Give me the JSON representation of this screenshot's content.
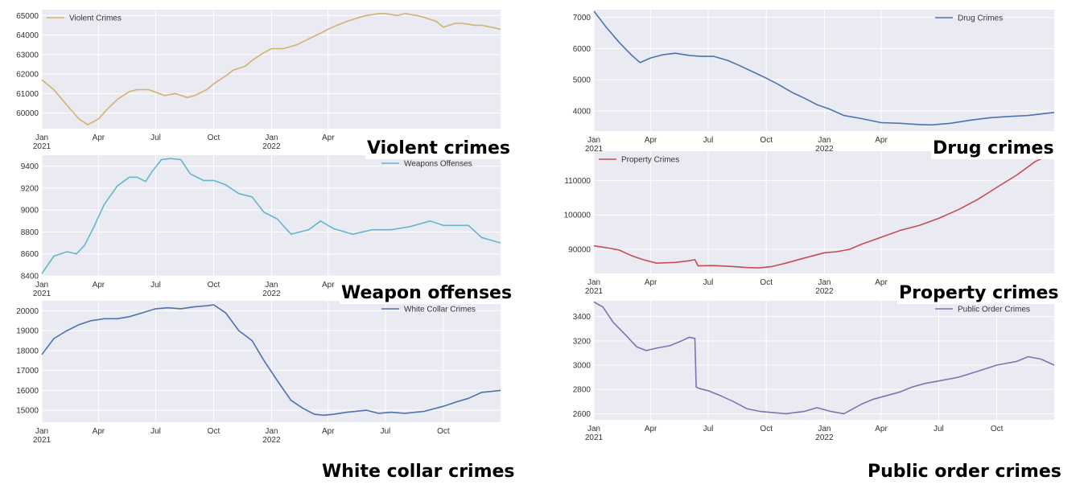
{
  "figure": {
    "captions": [
      {
        "id": "violent",
        "text": "Violent crimes"
      },
      {
        "id": "drug",
        "text": "Drug crimes"
      },
      {
        "id": "weapons",
        "text": "Weapon offenses"
      },
      {
        "id": "property",
        "text": "Property crimes"
      },
      {
        "id": "whitecollar",
        "text": "White collar crimes"
      },
      {
        "id": "publicorder",
        "text": "Public order crimes"
      }
    ]
  },
  "chart_data": [
    {
      "id": "violent",
      "type": "line",
      "title": "",
      "xlabel": "",
      "ylabel": "",
      "color": "#d1b26f",
      "legend": "top-left",
      "grid": true,
      "xlim": [
        "2021-01-01",
        "2022-12-31"
      ],
      "ylim": [
        59200,
        65300
      ],
      "x_ticks": [
        {
          "date": "2021-01-01",
          "label": "Jan",
          "year": "2021"
        },
        {
          "date": "2021-04-01",
          "label": "Apr",
          "year": ""
        },
        {
          "date": "2021-07-01",
          "label": "Jul",
          "year": ""
        },
        {
          "date": "2021-10-01",
          "label": "Oct",
          "year": ""
        },
        {
          "date": "2022-01-01",
          "label": "Jan",
          "year": "2022"
        },
        {
          "date": "2022-04-01",
          "label": "Apr",
          "year": ""
        }
      ],
      "y_ticks": [
        60000,
        61000,
        62000,
        63000,
        64000,
        65000
      ],
      "series": [
        {
          "name": "Violent Crimes",
          "x": [
            "2021-01-01",
            "2021-01-20",
            "2021-02-10",
            "2021-03-01",
            "2021-03-15",
            "2021-04-01",
            "2021-04-15",
            "2021-05-01",
            "2021-05-20",
            "2021-06-01",
            "2021-06-20",
            "2021-07-15",
            "2021-08-01",
            "2021-08-20",
            "2021-09-01",
            "2021-09-20",
            "2021-10-01",
            "2021-10-20",
            "2021-11-01",
            "2021-11-20",
            "2021-12-01",
            "2021-12-20",
            "2022-01-01",
            "2022-01-20",
            "2022-02-10",
            "2022-03-01",
            "2022-03-20",
            "2022-04-01",
            "2022-04-15",
            "2022-05-01",
            "2022-05-20",
            "2022-06-01",
            "2022-06-20",
            "2022-07-01",
            "2022-07-20",
            "2022-08-01",
            "2022-08-20",
            "2022-09-01",
            "2022-09-20",
            "2022-10-01",
            "2022-10-20",
            "2022-11-01",
            "2022-11-20",
            "2022-12-01",
            "2022-12-31"
          ],
          "y": [
            61700,
            61200,
            60400,
            59700,
            59400,
            59700,
            60200,
            60700,
            61100,
            61200,
            61200,
            60900,
            61000,
            60800,
            60900,
            61200,
            61500,
            61900,
            62200,
            62400,
            62700,
            63100,
            63300,
            63300,
            63500,
            63800,
            64100,
            64300,
            64500,
            64700,
            64900,
            65000,
            65100,
            65100,
            65000,
            65100,
            65000,
            64900,
            64700,
            64400,
            64600,
            64600,
            64500,
            64500,
            64300
          ]
        }
      ]
    },
    {
      "id": "drug",
      "type": "line",
      "title": "",
      "xlabel": "",
      "ylabel": "",
      "color": "#4c72b0",
      "legend": "top-right",
      "grid": true,
      "xlim": [
        "2021-01-01",
        "2022-12-31"
      ],
      "ylim": [
        3350,
        7250
      ],
      "x_ticks": [
        {
          "date": "2021-01-01",
          "label": "Jan",
          "year": "2021"
        },
        {
          "date": "2021-04-01",
          "label": "Apr",
          "year": ""
        },
        {
          "date": "2021-07-01",
          "label": "Jul",
          "year": ""
        },
        {
          "date": "2021-10-01",
          "label": "Oct",
          "year": ""
        },
        {
          "date": "2022-01-01",
          "label": "Jan",
          "year": "2022"
        },
        {
          "date": "2022-04-01",
          "label": "Apr",
          "year": ""
        }
      ],
      "y_ticks": [
        4000,
        5000,
        6000,
        7000
      ],
      "series": [
        {
          "name": "Drug Crimes",
          "x": [
            "2021-01-01",
            "2021-01-20",
            "2021-02-10",
            "2021-03-01",
            "2021-03-15",
            "2021-04-01",
            "2021-04-20",
            "2021-05-10",
            "2021-06-01",
            "2021-06-20",
            "2021-07-10",
            "2021-08-01",
            "2021-08-20",
            "2021-09-10",
            "2021-10-01",
            "2021-10-20",
            "2021-11-10",
            "2021-12-01",
            "2021-12-20",
            "2022-01-10",
            "2022-02-01",
            "2022-03-01",
            "2022-04-01",
            "2022-05-01",
            "2022-06-01",
            "2022-06-20",
            "2022-07-20",
            "2022-08-20",
            "2022-09-20",
            "2022-10-20",
            "2022-11-20",
            "2022-12-31"
          ],
          "y": [
            7200,
            6700,
            6200,
            5800,
            5550,
            5700,
            5800,
            5850,
            5780,
            5750,
            5750,
            5620,
            5450,
            5250,
            5050,
            4850,
            4600,
            4400,
            4200,
            4050,
            3850,
            3750,
            3620,
            3600,
            3560,
            3550,
            3600,
            3700,
            3780,
            3820,
            3850,
            3950
          ]
        }
      ]
    },
    {
      "id": "weapons",
      "type": "line",
      "title": "",
      "xlabel": "",
      "ylabel": "",
      "color": "#64b5cd",
      "legend": "top-right",
      "grid": true,
      "xlim": [
        "2021-01-01",
        "2022-12-31"
      ],
      "ylim": [
        8400,
        9500
      ],
      "x_ticks": [
        {
          "date": "2021-01-01",
          "label": "Jan",
          "year": "2021"
        },
        {
          "date": "2021-04-01",
          "label": "Apr",
          "year": ""
        },
        {
          "date": "2021-07-01",
          "label": "Jul",
          "year": ""
        },
        {
          "date": "2021-10-01",
          "label": "Oct",
          "year": ""
        },
        {
          "date": "2022-01-01",
          "label": "Jan",
          "year": "2022"
        },
        {
          "date": "2022-04-01",
          "label": "Apr",
          "year": ""
        }
      ],
      "y_ticks": [
        8400,
        8600,
        8800,
        9000,
        9200,
        9400
      ],
      "series": [
        {
          "name": "Weapons Offenses",
          "x": [
            "2021-01-01",
            "2021-01-20",
            "2021-02-10",
            "2021-02-25",
            "2021-03-10",
            "2021-03-25",
            "2021-04-10",
            "2021-05-01",
            "2021-05-20",
            "2021-06-01",
            "2021-06-15",
            "2021-06-25",
            "2021-07-10",
            "2021-07-25",
            "2021-08-10",
            "2021-08-25",
            "2021-09-15",
            "2021-10-01",
            "2021-10-20",
            "2021-11-10",
            "2021-12-01",
            "2021-12-20",
            "2022-01-10",
            "2022-02-01",
            "2022-03-01",
            "2022-03-20",
            "2022-04-10",
            "2022-05-10",
            "2022-06-10",
            "2022-07-10",
            "2022-08-10",
            "2022-09-10",
            "2022-10-01",
            "2022-10-20",
            "2022-11-10",
            "2022-12-01",
            "2022-12-31"
          ],
          "y": [
            8420,
            8580,
            8620,
            8600,
            8680,
            8850,
            9050,
            9220,
            9300,
            9300,
            9260,
            9350,
            9460,
            9470,
            9460,
            9330,
            9270,
            9270,
            9230,
            9150,
            9120,
            8980,
            8920,
            8780,
            8820,
            8900,
            8830,
            8780,
            8820,
            8820,
            8850,
            8900,
            8860,
            8860,
            8860,
            8750,
            8700
          ]
        }
      ]
    },
    {
      "id": "property",
      "type": "line",
      "title": "",
      "xlabel": "",
      "ylabel": "",
      "color": "#c44e52",
      "legend": "top-left",
      "grid": true,
      "xlim": [
        "2021-01-01",
        "2022-12-31"
      ],
      "ylim": [
        83000,
        118500
      ],
      "x_ticks": [
        {
          "date": "2021-01-01",
          "label": "Jan",
          "year": "2021"
        },
        {
          "date": "2021-04-01",
          "label": "Apr",
          "year": ""
        },
        {
          "date": "2021-07-01",
          "label": "Jul",
          "year": ""
        },
        {
          "date": "2021-10-01",
          "label": "Oct",
          "year": ""
        },
        {
          "date": "2022-01-01",
          "label": "Jan",
          "year": "2022"
        },
        {
          "date": "2022-04-01",
          "label": "Apr",
          "year": ""
        }
      ],
      "y_ticks": [
        90000,
        100000,
        110000
      ],
      "series": [
        {
          "name": "Property Crimes",
          "x": [
            "2021-01-01",
            "2021-01-20",
            "2021-02-10",
            "2021-03-01",
            "2021-03-20",
            "2021-04-10",
            "2021-05-10",
            "2021-06-01",
            "2021-06-10",
            "2021-06-15",
            "2021-07-10",
            "2021-08-10",
            "2021-09-01",
            "2021-09-20",
            "2021-10-10",
            "2021-11-01",
            "2021-12-01",
            "2022-01-01",
            "2022-01-20",
            "2022-02-10",
            "2022-03-01",
            "2022-04-01",
            "2022-05-01",
            "2022-06-01",
            "2022-07-01",
            "2022-08-01",
            "2022-09-01",
            "2022-10-01",
            "2022-11-01",
            "2022-12-01",
            "2022-12-31"
          ],
          "y": [
            91000,
            90500,
            89800,
            88200,
            87000,
            86000,
            86200,
            86700,
            87000,
            85200,
            85300,
            85000,
            84700,
            84600,
            85000,
            86000,
            87500,
            89000,
            89300,
            90000,
            91500,
            93500,
            95500,
            97000,
            99000,
            101500,
            104500,
            108000,
            111500,
            115500,
            118000
          ]
        }
      ]
    },
    {
      "id": "whitecollar",
      "type": "line",
      "title": "",
      "xlabel": "",
      "ylabel": "",
      "color": "#4c72b0",
      "legend": "top-right",
      "grid": true,
      "xlim": [
        "2021-01-01",
        "2022-12-31"
      ],
      "ylim": [
        14400,
        20500
      ],
      "x_ticks": [
        {
          "date": "2021-01-01",
          "label": "Jan",
          "year": "2021"
        },
        {
          "date": "2021-04-01",
          "label": "Apr",
          "year": ""
        },
        {
          "date": "2021-07-01",
          "label": "Jul",
          "year": ""
        },
        {
          "date": "2021-10-01",
          "label": "Oct",
          "year": ""
        },
        {
          "date": "2022-01-01",
          "label": "Jan",
          "year": "2022"
        },
        {
          "date": "2022-04-01",
          "label": "Apr",
          "year": ""
        },
        {
          "date": "2022-07-01",
          "label": "Jul",
          "year": ""
        },
        {
          "date": "2022-10-01",
          "label": "Oct",
          "year": ""
        }
      ],
      "y_ticks": [
        15000,
        16000,
        17000,
        18000,
        19000,
        20000
      ],
      "series": [
        {
          "name": "White Collar Crimes",
          "x": [
            "2021-01-01",
            "2021-01-20",
            "2021-02-10",
            "2021-03-01",
            "2021-03-20",
            "2021-04-10",
            "2021-05-01",
            "2021-05-20",
            "2021-06-10",
            "2021-07-01",
            "2021-07-20",
            "2021-08-10",
            "2021-09-01",
            "2021-09-20",
            "2021-10-01",
            "2021-10-20",
            "2021-11-10",
            "2021-12-01",
            "2021-12-20",
            "2022-01-10",
            "2022-02-01",
            "2022-02-20",
            "2022-03-10",
            "2022-03-25",
            "2022-04-10",
            "2022-05-01",
            "2022-06-01",
            "2022-06-20",
            "2022-07-10",
            "2022-08-01",
            "2022-09-01",
            "2022-10-01",
            "2022-10-20",
            "2022-11-10",
            "2022-12-01",
            "2022-12-31"
          ],
          "y": [
            17800,
            18600,
            19000,
            19300,
            19500,
            19600,
            19600,
            19700,
            19900,
            20100,
            20150,
            20100,
            20200,
            20250,
            20300,
            19900,
            19000,
            18500,
            17500,
            16500,
            15500,
            15100,
            14800,
            14750,
            14800,
            14900,
            15000,
            14850,
            14900,
            14850,
            14950,
            15200,
            15400,
            15600,
            15900,
            16000
          ]
        }
      ]
    },
    {
      "id": "publicorder",
      "type": "line",
      "title": "",
      "xlabel": "",
      "ylabel": "",
      "color": "#8172b2",
      "legend": "top-right",
      "grid": true,
      "xlim": [
        "2021-01-01",
        "2022-12-31"
      ],
      "ylim": [
        2550,
        3530
      ],
      "x_ticks": [
        {
          "date": "2021-01-01",
          "label": "Jan",
          "year": "2021"
        },
        {
          "date": "2021-04-01",
          "label": "Apr",
          "year": ""
        },
        {
          "date": "2021-07-01",
          "label": "Jul",
          "year": ""
        },
        {
          "date": "2021-10-01",
          "label": "Oct",
          "year": ""
        },
        {
          "date": "2022-01-01",
          "label": "Jan",
          "year": "2022"
        },
        {
          "date": "2022-04-01",
          "label": "Apr",
          "year": ""
        },
        {
          "date": "2022-07-01",
          "label": "Jul",
          "year": ""
        },
        {
          "date": "2022-10-01",
          "label": "Oct",
          "year": ""
        }
      ],
      "y_ticks": [
        2600,
        2800,
        3000,
        3200,
        3400
      ],
      "series": [
        {
          "name": "Public Order Crimes",
          "x": [
            "2021-01-01",
            "2021-01-15",
            "2021-02-01",
            "2021-02-20",
            "2021-03-10",
            "2021-03-25",
            "2021-04-10",
            "2021-05-01",
            "2021-05-20",
            "2021-06-01",
            "2021-06-10",
            "2021-06-12",
            "2021-06-15",
            "2021-07-01",
            "2021-07-20",
            "2021-08-10",
            "2021-09-01",
            "2021-09-20",
            "2021-10-10",
            "2021-11-01",
            "2021-12-01",
            "2021-12-20",
            "2022-01-10",
            "2022-02-01",
            "2022-03-01",
            "2022-03-20",
            "2022-04-10",
            "2022-05-01",
            "2022-05-20",
            "2022-06-10",
            "2022-07-01",
            "2022-08-01",
            "2022-09-01",
            "2022-10-01",
            "2022-11-01",
            "2022-11-20",
            "2022-12-10",
            "2022-12-31"
          ],
          "y": [
            3520,
            3480,
            3350,
            3250,
            3150,
            3120,
            3140,
            3160,
            3200,
            3230,
            3220,
            2820,
            2810,
            2790,
            2750,
            2700,
            2640,
            2620,
            2610,
            2600,
            2620,
            2650,
            2620,
            2600,
            2680,
            2720,
            2750,
            2780,
            2820,
            2850,
            2870,
            2900,
            2950,
            3000,
            3030,
            3070,
            3050,
            3000
          ]
        }
      ]
    }
  ]
}
